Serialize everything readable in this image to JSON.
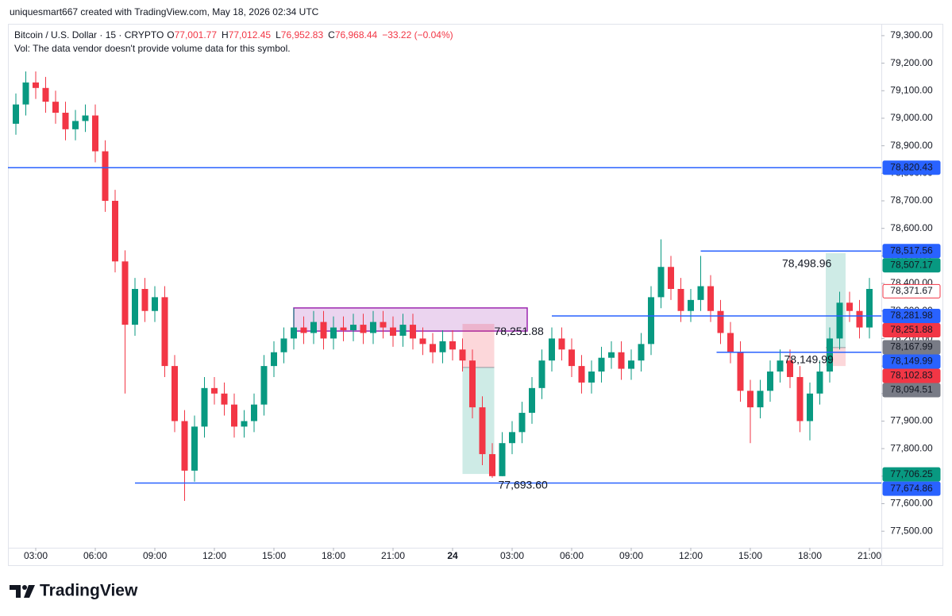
{
  "chart_data": {
    "type": "candlestick",
    "header": "uniquesmart667 created with TradingView.com, May 18, 2026 02:34 UTC",
    "title": "Bitcoin / U.S. Dollar · 15 · CRYPTO",
    "ohlc_legend": [
      {
        "key": "O",
        "value": "77,001.77"
      },
      {
        "key": "H",
        "value": "77,012.45"
      },
      {
        "key": "L",
        "value": "76,952.83"
      },
      {
        "key": "C",
        "value": "76,968.44"
      }
    ],
    "change": "−33.22 (−0.04%)",
    "volume_note": "Vol: The data vendor doesn't provide volume data for this symbol.",
    "brand": "TradingView",
    "up_color": "#089981",
    "down_color": "#f23645",
    "xlim": [
      1.6,
      45.6
    ],
    "ylim": [
      77440,
      79343
    ],
    "xticks": [
      {
        "value": 3,
        "label": "03:00"
      },
      {
        "value": 6,
        "label": "06:00"
      },
      {
        "value": 9,
        "label": "09:00"
      },
      {
        "value": 12,
        "label": "12:00"
      },
      {
        "value": 15,
        "label": "15:00"
      },
      {
        "value": 18,
        "label": "18:00"
      },
      {
        "value": 21,
        "label": "21:00"
      },
      24,
      {
        "value": 27,
        "label": "03:00"
      },
      {
        "value": 30,
        "label": "06:00"
      },
      {
        "value": 33,
        "label": "09:00"
      },
      {
        "value": 36,
        "label": "12:00"
      },
      {
        "value": 39,
        "label": "15:00"
      },
      {
        "value": 42,
        "label": "18:00"
      },
      {
        "value": 45,
        "label": "21:00"
      }
    ],
    "yticks": [
      {
        "value": 79300,
        "label": "79,300.00"
      },
      {
        "value": 79200,
        "label": "79,200.00"
      },
      {
        "value": 79100,
        "label": "79,100.00"
      },
      {
        "value": 79000,
        "label": "79,000.00"
      },
      {
        "value": 78900,
        "label": "78,900.00"
      },
      {
        "value": 78800,
        "label": "78,800.00"
      },
      {
        "value": 78700,
        "label": "78,700.00"
      },
      {
        "value": 78600,
        "label": "78,600.00"
      },
      {
        "value": 78500,
        "label": "78,500.00"
      },
      {
        "value": 78400,
        "label": "78,400.00"
      },
      {
        "value": 78300,
        "label": "78,300.00"
      },
      {
        "value": 78200,
        "label": "78,200.00"
      },
      {
        "value": 78100,
        "label": "78,100.00"
      },
      {
        "value": 78000,
        "label": "78,000.00"
      },
      {
        "value": 77900,
        "label": "77,900.00"
      },
      {
        "value": 77800,
        "label": "77,800.00"
      },
      {
        "value": 77700,
        "label": "77,700.00"
      },
      {
        "value": 77600,
        "label": "77,600.00"
      },
      {
        "value": 77500,
        "label": "77,500.00"
      }
    ],
    "x": [
      2,
      2.5,
      3,
      3.5,
      4,
      4.5,
      5,
      5.5,
      6,
      6.5,
      7,
      7.5,
      8,
      8.5,
      9,
      9.5,
      10,
      10.5,
      11,
      11.5,
      12,
      12.5,
      13,
      13.5,
      14,
      14.5,
      15,
      15.5,
      16,
      16.5,
      17,
      17.5,
      18,
      18.5,
      19,
      19.5,
      20,
      20.5,
      21,
      21.5,
      22,
      22.5,
      23,
      23.5,
      24,
      24.5,
      25,
      25.5,
      26,
      26.5,
      27,
      27.5,
      28,
      28.5,
      29,
      29.5,
      30,
      30.5,
      31,
      31.5,
      32,
      32.5,
      33,
      33.5,
      34,
      34.5,
      35,
      35.5,
      36,
      36.5,
      37,
      37.5,
      38,
      38.5,
      39,
      39.5,
      40,
      40.5,
      41,
      41.5,
      42,
      42.5,
      43,
      43.5,
      44,
      44.5,
      45
    ],
    "open": [
      78980,
      79050,
      79130,
      79110,
      79060,
      79020,
      78960,
      78990,
      79010,
      78880,
      78700,
      78480,
      78250,
      78380,
      78300,
      78350,
      78100,
      77900,
      77720,
      77880,
      78020,
      78000,
      77960,
      77880,
      77900,
      77960,
      78100,
      78150,
      78200,
      78240,
      78220,
      78260,
      78200,
      78240,
      78230,
      78250,
      78220,
      78260,
      78240,
      78210,
      78250,
      78200,
      78180,
      78150,
      78190,
      78160,
      78120,
      77950,
      77780,
      77700,
      77820,
      77860,
      77930,
      78020,
      78120,
      78200,
      78160,
      78100,
      78040,
      78080,
      78130,
      78150,
      78090,
      78120,
      78180,
      78350,
      78460,
      78380,
      78300,
      78340,
      78390,
      78300,
      78220,
      78150,
      78010,
      77950,
      78010,
      78080,
      78120,
      78060,
      77900,
      78000,
      78080,
      78200,
      78330,
      78300,
      78240
    ],
    "high": [
      79090,
      79170,
      79170,
      79150,
      79100,
      79060,
      79030,
      79050,
      79050,
      78920,
      78740,
      78520,
      78420,
      78420,
      78390,
      78390,
      78140,
      77940,
      77920,
      78060,
      78060,
      78040,
      78000,
      77940,
      78000,
      78140,
      78190,
      78240,
      78310,
      78280,
      78300,
      78300,
      78280,
      78280,
      78290,
      78290,
      78300,
      78300,
      78280,
      78290,
      78290,
      78240,
      78220,
      78230,
      78230,
      78200,
      78160,
      77990,
      77820,
      77860,
      77900,
      77970,
      78060,
      78160,
      78240,
      78240,
      78200,
      78140,
      78120,
      78170,
      78190,
      78190,
      78160,
      78220,
      78390,
      78560,
      78500,
      78420,
      78380,
      78500,
      78430,
      78340,
      78260,
      78190,
      78050,
      78050,
      78120,
      78160,
      78160,
      78100,
      78040,
      78120,
      78240,
      78370,
      78370,
      78340,
      78420
    ],
    "low": [
      78940,
      79010,
      79070,
      79020,
      78980,
      78920,
      78920,
      78950,
      78840,
      78660,
      78440,
      78000,
      78210,
      78260,
      78260,
      78060,
      77860,
      77610,
      77680,
      77840,
      77960,
      77920,
      77840,
      77840,
      77860,
      77920,
      78060,
      78110,
      78160,
      78180,
      78180,
      78160,
      78160,
      78190,
      78190,
      78180,
      78180,
      78200,
      78170,
      78170,
      78160,
      78140,
      78110,
      78110,
      78120,
      78080,
      77910,
      77740,
      77694,
      77700,
      77780,
      77820,
      77890,
      77980,
      78080,
      78120,
      78060,
      78000,
      78000,
      78040,
      78090,
      78050,
      78050,
      78080,
      78140,
      78310,
      78340,
      78260,
      78260,
      78300,
      78260,
      78180,
      78110,
      77970,
      77820,
      77910,
      77970,
      78040,
      78020,
      77860,
      77830,
      77960,
      78040,
      78160,
      78260,
      78200,
      78200
    ],
    "close": [
      79050,
      79130,
      79110,
      79060,
      79020,
      78960,
      78990,
      79010,
      78880,
      78700,
      78480,
      78250,
      78380,
      78300,
      78350,
      78100,
      77900,
      77720,
      77880,
      78020,
      78000,
      77960,
      77880,
      77900,
      77960,
      78100,
      78150,
      78200,
      78240,
      78220,
      78260,
      78200,
      78240,
      78230,
      78250,
      78220,
      78260,
      78240,
      78210,
      78250,
      78200,
      78180,
      78150,
      78190,
      78160,
      78120,
      77950,
      77780,
      77700,
      77820,
      77860,
      77930,
      78020,
      78120,
      78200,
      78160,
      78100,
      78040,
      78080,
      78130,
      78150,
      78090,
      78120,
      78180,
      78350,
      78460,
      78380,
      78300,
      78340,
      78390,
      78300,
      78220,
      78150,
      78010,
      77950,
      78010,
      78080,
      78120,
      78060,
      77900,
      78000,
      78080,
      78200,
      78330,
      78300,
      78240,
      78380
    ],
    "price_labels": [
      {
        "value": 78820.43,
        "label": "78,820.43",
        "color": "#2962ff",
        "line": true
      },
      {
        "value": 78517.56,
        "label": "78,517.56",
        "color": "#2962ff",
        "line_from": 36.5
      },
      {
        "value": 78507.17,
        "label": "78,507.17",
        "color": "#089981"
      },
      {
        "value": 78371.67,
        "label": "78,371.67",
        "color": "#f23645",
        "outline": true
      },
      {
        "value": 78281.98,
        "label": "78,281.98",
        "color": "#2962ff",
        "line_from": 29
      },
      {
        "value": 78251.88,
        "label": "78,251.88",
        "color": "#f23645"
      },
      {
        "value": 78167.99,
        "label": "78,167.99",
        "color": "#787b86"
      },
      {
        "value": 78149.99,
        "label": "78,149.99",
        "color": "#2962ff",
        "line_from": 37.3
      },
      {
        "value": 78102.83,
        "label": "78,102.83",
        "color": "#f23645"
      },
      {
        "value": 78094.51,
        "label": "78,094.51",
        "color": "#787b86"
      },
      {
        "value": 77706.25,
        "label": "77,706.25",
        "color": "#089981"
      },
      {
        "value": 77674.86,
        "label": "77,674.86",
        "color": "#2962ff",
        "line_from": 8
      }
    ],
    "rectangles": [
      {
        "x0": 16,
        "x1": 27.76,
        "top": 78311,
        "bottom": 78227,
        "color": "#9c27b0"
      }
    ],
    "positions": [
      {
        "x0": 24.5,
        "x1": 26.1,
        "entry": 78095,
        "target": 77708,
        "stop": 78253
      },
      {
        "x0": 42.8,
        "x1": 43.8,
        "entry": 78167,
        "target": 78510,
        "stop": 78100
      }
    ],
    "annotations": [
      {
        "x": 26.1,
        "value": 78251.88,
        "label": "78,251.88"
      },
      {
        "x": 26.3,
        "value": 77693.6,
        "label": "77,693.60"
      },
      {
        "x": 40.6,
        "value": 78498.96,
        "label": "78,498.96"
      },
      {
        "x": 40.7,
        "value": 78149.99,
        "label": "78,149.99"
      }
    ]
  }
}
